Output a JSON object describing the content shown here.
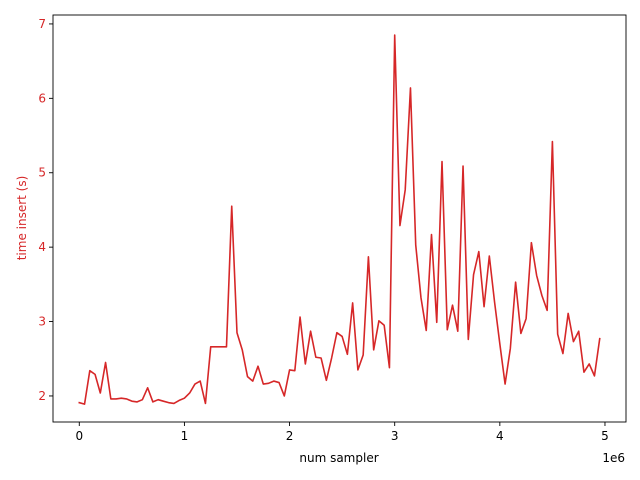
{
  "chart_data": {
    "type": "line",
    "title": "",
    "xlabel": "num sampler",
    "ylabel": "time insert (s)",
    "x_offset_label": "1e6",
    "xlim": [
      -250000,
      5200000
    ],
    "ylim": [
      1.65,
      7.12
    ],
    "x_ticks": [
      0,
      1000000,
      2000000,
      3000000,
      4000000,
      5000000
    ],
    "x_tick_labels": [
      "0",
      "1",
      "2",
      "3",
      "4",
      "5"
    ],
    "y_ticks": [
      2,
      3,
      4,
      5,
      6,
      7
    ],
    "y_tick_labels": [
      "2",
      "3",
      "4",
      "5",
      "6",
      "7"
    ],
    "grid": false,
    "colors": {
      "series": "#d62728",
      "ylabel": "#d62728",
      "axis": "#000000"
    },
    "series": [
      {
        "x": [
          0,
          50000,
          100000,
          150000,
          200000,
          250000,
          300000,
          350000,
          400000,
          450000,
          500000,
          550000,
          600000,
          650000,
          700000,
          750000,
          800000,
          850000,
          900000,
          950000,
          1000000,
          1050000,
          1100000,
          1150000,
          1200000,
          1250000,
          1300000,
          1350000,
          1400000,
          1450000,
          1500000,
          1550000,
          1600000,
          1650000,
          1700000,
          1750000,
          1800000,
          1850000,
          1900000,
          1950000,
          2000000,
          2050000,
          2100000,
          2150000,
          2200000,
          2250000,
          2300000,
          2350000,
          2400000,
          2450000,
          2500000,
          2550000,
          2600000,
          2650000,
          2700000,
          2750000,
          2800000,
          2850000,
          2900000,
          2950000,
          3000000,
          3050000,
          3100000,
          3150000,
          3200000,
          3250000,
          3300000,
          3350000,
          3400000,
          3450000,
          3500000,
          3550000,
          3600000,
          3650000,
          3700000,
          3750000,
          3800000,
          3850000,
          3900000,
          3950000,
          4000000,
          4050000,
          4100000,
          4150000,
          4200000,
          4250000,
          4300000,
          4350000,
          4400000,
          4450000,
          4500000,
          4550000,
          4600000,
          4650000,
          4700000,
          4750000,
          4800000,
          4850000,
          4900000,
          4950000
        ],
        "values": [
          1.91,
          1.89,
          2.34,
          2.29,
          2.04,
          2.45,
          1.96,
          1.96,
          1.97,
          1.96,
          1.93,
          1.92,
          1.95,
          2.11,
          1.92,
          1.95,
          1.93,
          1.91,
          1.9,
          1.94,
          1.97,
          2.04,
          2.16,
          2.2,
          1.9,
          2.66,
          2.66,
          2.66,
          2.66,
          4.55,
          2.85,
          2.62,
          2.26,
          2.2,
          2.4,
          2.16,
          2.17,
          2.2,
          2.18,
          2.0,
          2.35,
          2.34,
          3.06,
          2.43,
          2.87,
          2.52,
          2.51,
          2.21,
          2.51,
          2.85,
          2.8,
          2.56,
          3.25,
          2.35,
          2.55,
          3.87,
          2.62,
          3.01,
          2.95,
          2.38,
          6.85,
          4.29,
          4.77,
          6.14,
          4.03,
          3.32,
          2.88,
          4.17,
          2.99,
          5.15,
          2.89,
          3.22,
          2.87,
          5.09,
          2.76,
          3.63,
          3.94,
          3.2,
          3.88,
          3.26,
          2.7,
          2.16,
          2.64,
          3.53,
          2.84,
          3.04,
          4.06,
          3.62,
          3.35,
          3.15,
          5.42,
          2.83,
          2.57,
          3.11,
          2.73,
          2.87,
          2.32,
          2.43,
          2.27,
          2.77
        ]
      }
    ]
  }
}
